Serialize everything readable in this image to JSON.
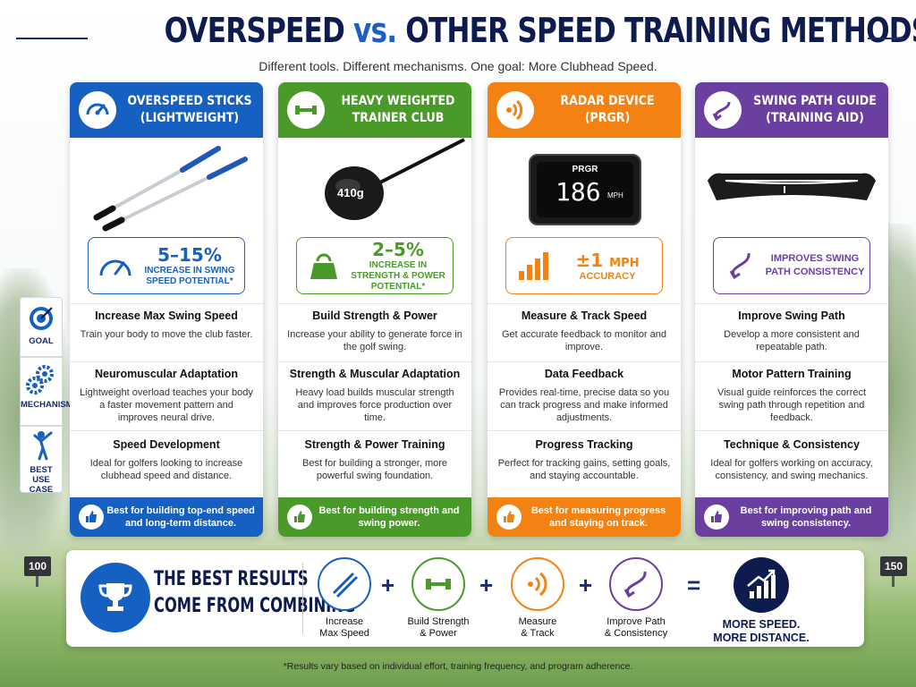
{
  "title": {
    "part1": "OVERSPEED",
    "vs": "vs.",
    "part2": "OTHER SPEED TRAINING METHODS"
  },
  "subtitle": "Different tools. Different mechanisms. One goal: More Clubhead Speed.",
  "side_labels": [
    "GOAL",
    "MECHANISM",
    "BEST USE CASE"
  ],
  "yard_markers": [
    "100",
    "150"
  ],
  "colors": {
    "blue": "#1660c2",
    "green": "#4a9a2a",
    "orange": "#f38212",
    "purple": "#6b3fa0",
    "navy": "#0d1b4f"
  },
  "columns": [
    {
      "title_line1": "OVERSPEED STICKS",
      "title_line2": "(LIGHTWEIGHT)",
      "icon": "speedometer-icon",
      "stat_big": "5–15%",
      "stat_small": "INCREASE IN SWING SPEED POTENTIAL*",
      "goal_title": "Increase Max Swing Speed",
      "goal_text": "Train your body to move the club faster.",
      "mech_title": "Neuromuscular Adaptation",
      "mech_text": "Lightweight overload teaches your body a faster movement pattern and improves neural drive.",
      "use_title": "Speed Development",
      "use_text": "Ideal for golfers looking to increase clubhead speed and distance.",
      "foot": "Best for building top-end speed and long-term distance."
    },
    {
      "title_line1": "HEAVY WEIGHTED",
      "title_line2": "TRAINER CLUB",
      "icon": "dumbbell-icon",
      "image_label": "410g",
      "stat_big": "2–5%",
      "stat_small": "INCREASE IN STRENGTH & POWER POTENTIAL*",
      "goal_title": "Build Strength & Power",
      "goal_text": "Increase your ability to generate force in the golf swing.",
      "mech_title": "Strength & Muscular Adaptation",
      "mech_text": "Heavy load builds muscular strength and improves force production over time.",
      "use_title": "Strength & Power Training",
      "use_text": "Best for building a stronger, more powerful swing foundation.",
      "foot": "Best for building strength and swing power."
    },
    {
      "title_line1": "RADAR DEVICE",
      "title_line2": "(PRGR)",
      "icon": "radar-waves-icon",
      "device_brand": "PRGR",
      "device_value": "186",
      "device_unit": "MPH",
      "stat_big": "±1",
      "stat_big_unit": "MPH",
      "stat_small": "ACCURACY",
      "goal_title": "Measure & Track Speed",
      "goal_text": "Get accurate feedback to monitor and improve.",
      "mech_title": "Data Feedback",
      "mech_text": "Provides real-time, precise data so you can track progress and make informed adjustments.",
      "use_title": "Progress Tracking",
      "use_text": "Perfect for tracking gains, setting goals, and staying accountable.",
      "foot": "Best for measuring progress and staying on track."
    },
    {
      "title_line1": "SWING PATH GUIDE",
      "title_line2": "(TRAINING AID)",
      "icon": "curved-arrow-icon",
      "stat_big": "",
      "stat_small": "IMPROVES SWING PATH CONSISTENCY",
      "goal_title": "Improve Swing Path",
      "goal_text": "Develop a more consistent and repeatable path.",
      "mech_title": "Motor Pattern Training",
      "mech_text": "Visual guide reinforces the correct swing path through repetition and feedback.",
      "use_title": "Technique & Consistency",
      "use_text": "Ideal for golfers working on accuracy, consistency, and swing mechanics.",
      "foot": "Best for improving path and swing consistency."
    }
  ],
  "bottom": {
    "headline_line1": "THE BEST RESULTS",
    "headline_line2": "COME FROM COMBINING",
    "items": [
      {
        "label_line1": "Increase",
        "label_line2": "Max Speed"
      },
      {
        "label_line1": "Build Strength",
        "label_line2": "& Power"
      },
      {
        "label_line1": "Measure",
        "label_line2": "& Track"
      },
      {
        "label_line1": "Improve Path",
        "label_line2": "& Consistency"
      }
    ],
    "plus": "+",
    "equals": "=",
    "result_line1": "MORE SPEED.",
    "result_line2": "MORE DISTANCE."
  },
  "footnote": "*Results vary based on individual effort, training frequency, and program adherence."
}
